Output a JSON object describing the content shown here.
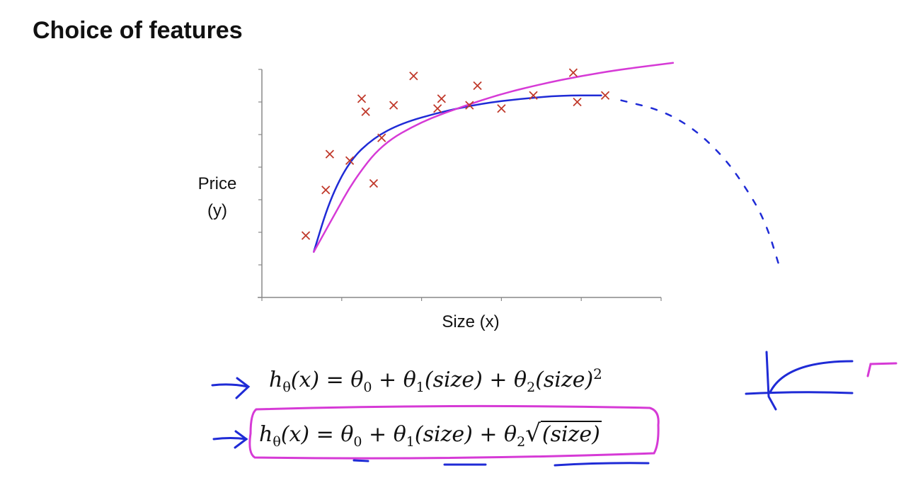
{
  "title": "Choice of features",
  "formulas": {
    "f1": {
      "lhs": "h",
      "lhs_sub": "θ",
      "lhs_arg": "(x) = ",
      "t0": "θ",
      "t0_sub": "0",
      "plus1": " + ",
      "t1": "θ",
      "t1_sub": "1",
      "term1": "(size) + ",
      "t2": "θ",
      "t2_sub": "2",
      "term2": "(size)",
      "power": "2"
    },
    "f2": {
      "lhs": "h",
      "lhs_sub": "θ",
      "lhs_arg": "(x) = ",
      "t0": "θ",
      "t0_sub": "0",
      "plus1": " + ",
      "t1": "θ",
      "t1_sub": "1",
      "term1": "(size) + ",
      "t2": "θ",
      "t2_sub": "2",
      "sqrt_sign": "√",
      "sqrt_body": "(size)"
    }
  },
  "annotation_colors": {
    "blue": "#1f2bd6",
    "magenta": "#d63ad6"
  },
  "chart_data": {
    "type": "scatter",
    "xlabel": "Size (x)",
    "ylabel": "Price",
    "ylabel_line2": "(y)",
    "xlim": [
      0,
      100
    ],
    "ylim": [
      0,
      70
    ],
    "x_ticks": [
      0,
      20,
      40,
      60,
      80,
      100
    ],
    "y_ticks": [
      0,
      10,
      20,
      30,
      40,
      50,
      60,
      70
    ],
    "tick_labels_shown": false,
    "series": [
      {
        "marker": "x",
        "color": "#c0392b",
        "x": [
          11,
          16,
          17,
          22,
          25,
          26,
          28,
          30,
          33,
          38,
          44,
          45,
          52,
          54,
          60,
          68,
          78,
          79,
          86
        ],
        "y": [
          19,
          33,
          44,
          42,
          61,
          57,
          35,
          49,
          59,
          68,
          58,
          61,
          59,
          65,
          58,
          62,
          69,
          60,
          62
        ]
      }
    ],
    "fit_curves": [
      {
        "color": "#1f2bd6",
        "x": [
          13,
          17,
          22,
          28,
          35,
          45,
          55,
          65,
          75,
          85
        ],
        "y": [
          14,
          30,
          42,
          49,
          53.5,
          57,
          59.5,
          61,
          62,
          62
        ],
        "extrapolation": {
          "style": "dashed",
          "x": [
            90,
            100,
            108,
            115,
            120,
            126,
            130
          ],
          "y": [
            60.5,
            57.5,
            52,
            44,
            36,
            24,
            8
          ]
        }
      },
      {
        "color": "#d63ad6",
        "x": [
          13,
          18,
          23,
          30,
          40,
          50,
          60,
          70,
          80,
          90,
          103
        ],
        "y": [
          14,
          25,
          36,
          47,
          54,
          58.5,
          62.5,
          65.5,
          68,
          70,
          72
        ]
      }
    ]
  }
}
